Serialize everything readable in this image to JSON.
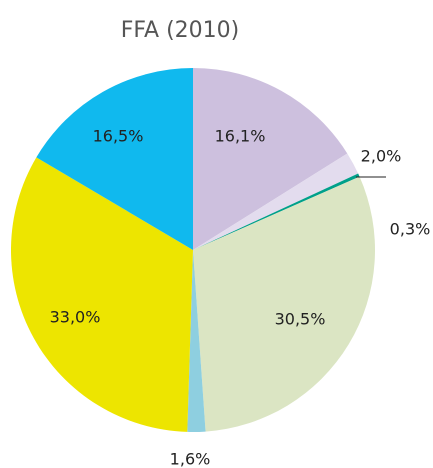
{
  "chart_data": {
    "type": "pie",
    "title": "FFA (2010)",
    "categories": [
      null,
      null,
      null,
      null,
      null,
      null,
      null
    ],
    "values": [
      16.1,
      2.0,
      0.3,
      30.5,
      1.6,
      33.0,
      16.5
    ],
    "value_labels": [
      "16,1%",
      "2,0%",
      "0,3%",
      "30,5%",
      "1,6%",
      "33,0%",
      "16,5%"
    ],
    "colors": [
      "#cdc0de",
      "#e3dcee",
      "#00a08a",
      "#dbe5c3",
      "#8ecfe0",
      "#ede500",
      "#10b9ee"
    ]
  }
}
